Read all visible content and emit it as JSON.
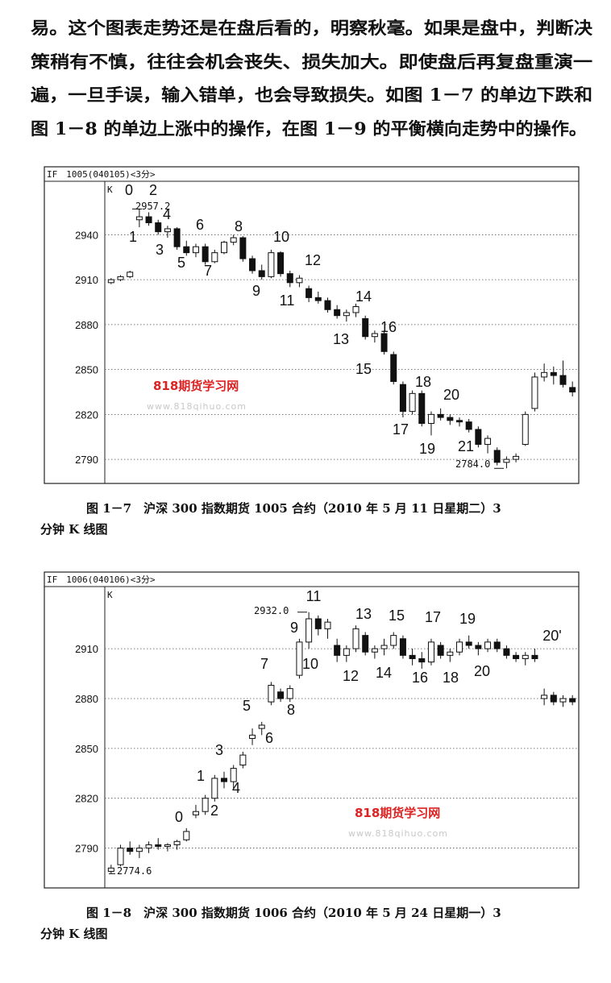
{
  "paragraph": [
    "易。这个图表走势还是在盘后看的，明察秋毫。如果是盘中，判断决",
    "策稍有不慎，往往会机会丧失、损失加大。即使盘后再复盘重演一",
    "遍，一旦手误，输入错单，也会导致损失。如图 1－7 的单边下跌和",
    "图 1－8 的单边上涨中的操作，在图 1－9 的平衡横向走势中的操作。"
  ],
  "chart_data": [
    {
      "type": "candlestick",
      "header": "IF　1005(040105)<3分>",
      "axis_label": "K",
      "caption": [
        "图 1－7　沪深 300 指数期货 1005 合约（2010 年 5 月 11 日星期二）3",
        "分钟 K 线图"
      ],
      "watermark": [
        "818期货学习网",
        "www.818qihuo.com"
      ],
      "ylim": [
        2775,
        2973
      ],
      "yticks": [
        2790,
        2820,
        2850,
        2880,
        2910,
        2940
      ],
      "grid": true,
      "up_color": "#ffffff",
      "down_color": "#111111",
      "candles": [
        [
          2908,
          2911,
          2907,
          2910
        ],
        [
          2910,
          2913,
          2909,
          2912
        ],
        [
          2912,
          2916,
          2911,
          2915
        ],
        [
          2950,
          2957.2,
          2945,
          2952
        ],
        [
          2952,
          2955,
          2946,
          2948
        ],
        [
          2948,
          2950,
          2940,
          2942
        ],
        [
          2942,
          2946,
          2938,
          2944
        ],
        [
          2944,
          2945,
          2930,
          2932
        ],
        [
          2932,
          2936,
          2926,
          2928
        ],
        [
          2928,
          2934,
          2925,
          2932
        ],
        [
          2932,
          2934,
          2920,
          2922
        ],
        [
          2922,
          2930,
          2921,
          2928
        ],
        [
          2928,
          2936,
          2927,
          2935
        ],
        [
          2935,
          2940,
          2933,
          2938
        ],
        [
          2938,
          2939,
          2922,
          2924
        ],
        [
          2924,
          2926,
          2914,
          2916
        ],
        [
          2916,
          2920,
          2910,
          2912
        ],
        [
          2912,
          2930,
          2911,
          2928
        ],
        [
          2928,
          2929,
          2912,
          2914
        ],
        [
          2914,
          2916,
          2905,
          2908
        ],
        [
          2908,
          2913,
          2905,
          2911
        ],
        [
          2904,
          2906,
          2895,
          2898
        ],
        [
          2898,
          2902,
          2894,
          2896
        ],
        [
          2896,
          2898,
          2888,
          2890
        ],
        [
          2890,
          2893,
          2884,
          2886
        ],
        [
          2886,
          2890,
          2882,
          2888
        ],
        [
          2888,
          2894,
          2885,
          2892
        ],
        [
          2884,
          2886,
          2870,
          2872
        ],
        [
          2872,
          2876,
          2868,
          2874
        ],
        [
          2874,
          2876,
          2860,
          2862
        ],
        [
          2860,
          2862,
          2840,
          2842
        ],
        [
          2840,
          2842,
          2818,
          2822
        ],
        [
          2822,
          2836,
          2820,
          2834
        ],
        [
          2834,
          2836,
          2812,
          2814
        ],
        [
          2814,
          2822,
          2806,
          2820
        ],
        [
          2820,
          2824,
          2816,
          2818
        ],
        [
          2818,
          2820,
          2813,
          2816
        ],
        [
          2816,
          2818,
          2812,
          2815
        ],
        [
          2815,
          2817,
          2808,
          2810
        ],
        [
          2810,
          2812,
          2798,
          2800
        ],
        [
          2800,
          2806,
          2794,
          2804
        ],
        [
          2796,
          2798,
          2786,
          2788
        ],
        [
          2788,
          2792,
          2784,
          2790
        ],
        [
          2790,
          2794,
          2788,
          2792
        ],
        [
          2800,
          2822,
          2799,
          2820
        ],
        [
          2824,
          2848,
          2822,
          2845
        ],
        [
          2845,
          2854,
          2842,
          2848
        ],
        [
          2848,
          2852,
          2840,
          2846
        ],
        [
          2846,
          2856,
          2838,
          2840
        ],
        [
          2838,
          2842,
          2832,
          2835
        ]
      ],
      "wave_labels": [
        "0",
        "1",
        "2",
        "3",
        "4",
        "5",
        "6",
        "7",
        "8",
        "9",
        "10",
        "11",
        "12",
        "13",
        "14",
        "15",
        "16",
        "17",
        "18",
        "19",
        "20",
        "21"
      ],
      "price_marks": [
        2957.2,
        {
          "value": 2784,
          "label": "2784.0"
        }
      ]
    },
    {
      "type": "candlestick",
      "header": "IF　1006(040106)<3分>",
      "axis_label": "K",
      "caption": [
        "图 1－8　沪深 300 指数期货 1006 合约（2010 年 5 月 24 日星期一）3",
        "分钟 K 线图"
      ],
      "watermark": [
        "818期货学习网",
        "www.818qihuo.com"
      ],
      "ylim": [
        2767,
        2944
      ],
      "yticks": [
        2790,
        2820,
        2850,
        2880,
        2910
      ],
      "grid": true,
      "up_color": "#ffffff",
      "down_color": "#111111",
      "candles": [
        [
          2776,
          2780,
          2774.6,
          2778
        ],
        [
          2780,
          2792,
          2779,
          2790
        ],
        [
          2790,
          2794,
          2786,
          2788
        ],
        [
          2788,
          2792,
          2784,
          2790
        ],
        [
          2790,
          2794,
          2787,
          2792
        ],
        [
          2792,
          2796,
          2789,
          2791
        ],
        [
          2791,
          2793,
          2788,
          2792
        ],
        [
          2792,
          2795,
          2789,
          2794
        ],
        [
          2795,
          2802,
          2794,
          2800
        ],
        [
          2810,
          2816,
          2808,
          2812
        ],
        [
          2812,
          2822,
          2810,
          2820
        ],
        [
          2820,
          2834,
          2818,
          2832
        ],
        [
          2832,
          2836,
          2826,
          2830
        ],
        [
          2830,
          2840,
          2826,
          2838
        ],
        [
          2840,
          2848,
          2838,
          2846
        ],
        [
          2856,
          2862,
          2852,
          2858
        ],
        [
          2862,
          2866,
          2858,
          2864
        ],
        [
          2878,
          2890,
          2876,
          2888
        ],
        [
          2884,
          2886,
          2878,
          2880
        ],
        [
          2880,
          2888,
          2878,
          2886
        ],
        [
          2894,
          2916,
          2892,
          2914
        ],
        [
          2914,
          2932,
          2910,
          2928
        ],
        [
          2928,
          2930,
          2918,
          2922
        ],
        [
          2922,
          2928,
          2916,
          2926
        ],
        [
          2912,
          2916,
          2902,
          2906
        ],
        [
          2906,
          2912,
          2902,
          2910
        ],
        [
          2910,
          2924,
          2908,
          2922
        ],
        [
          2918,
          2920,
          2906,
          2908
        ],
        [
          2908,
          2912,
          2904,
          2910
        ],
        [
          2910,
          2916,
          2906,
          2912
        ],
        [
          2912,
          2920,
          2910,
          2918
        ],
        [
          2916,
          2918,
          2904,
          2906
        ],
        [
          2906,
          2910,
          2900,
          2904
        ],
        [
          2904,
          2908,
          2898,
          2902
        ],
        [
          2902,
          2916,
          2900,
          2914
        ],
        [
          2912,
          2914,
          2904,
          2906
        ],
        [
          2906,
          2910,
          2902,
          2908
        ],
        [
          2908,
          2916,
          2906,
          2914
        ],
        [
          2914,
          2918,
          2910,
          2912
        ],
        [
          2912,
          2914,
          2906,
          2910
        ],
        [
          2910,
          2916,
          2908,
          2914
        ],
        [
          2914,
          2916,
          2908,
          2910
        ],
        [
          2910,
          2912,
          2904,
          2906
        ],
        [
          2906,
          2908,
          2902,
          2904
        ],
        [
          2904,
          2908,
          2900,
          2906
        ],
        [
          2906,
          2910,
          2902,
          2904
        ],
        [
          2880,
          2886,
          2876,
          2882
        ],
        [
          2882,
          2884,
          2876,
          2878
        ],
        [
          2878,
          2882,
          2875,
          2880
        ],
        [
          2880,
          2882,
          2876,
          2878
        ]
      ],
      "wave_labels": [
        "0",
        "1",
        "2",
        "3",
        "4",
        "5",
        "6",
        "7",
        "8",
        "9",
        "10",
        "11",
        "12",
        "13",
        "14",
        "15",
        "16",
        "17",
        "18",
        "19",
        "20",
        "20'"
      ],
      "price_marks": [
        {
          "value": 2932,
          "label": "2932.0"
        },
        2774.6
      ]
    }
  ]
}
